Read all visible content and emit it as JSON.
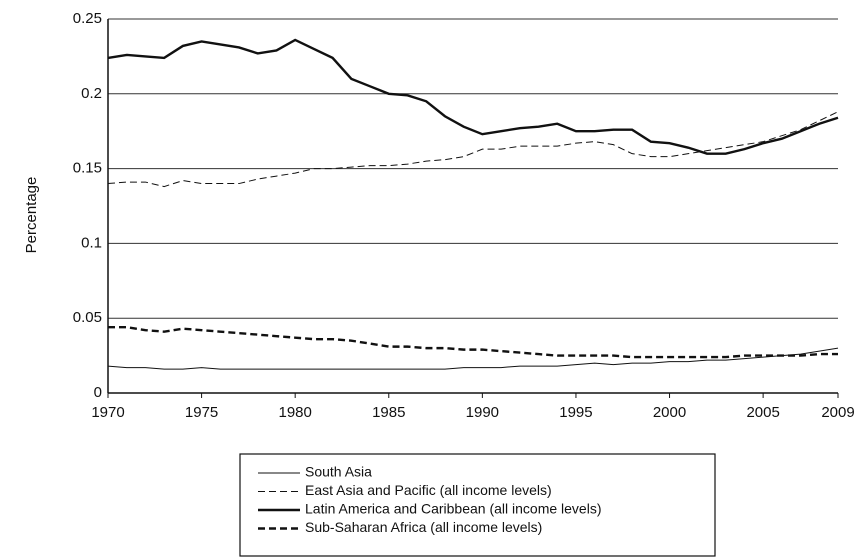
{
  "chart_data": {
    "type": "line",
    "y_label": "Percentage",
    "x": [
      1970,
      1971,
      1972,
      1973,
      1974,
      1975,
      1976,
      1977,
      1978,
      1979,
      1980,
      1981,
      1982,
      1983,
      1984,
      1985,
      1986,
      1987,
      1988,
      1989,
      1990,
      1991,
      1992,
      1993,
      1994,
      1995,
      1996,
      1997,
      1998,
      1999,
      2000,
      2001,
      2002,
      2003,
      2004,
      2005,
      2006,
      2007,
      2008,
      2009
    ],
    "series": [
      {
        "name": "South Asia",
        "color": "#111111",
        "dash": "solid",
        "width": 1,
        "values": [
          0.018,
          0.017,
          0.017,
          0.016,
          0.016,
          0.017,
          0.016,
          0.016,
          0.016,
          0.016,
          0.016,
          0.016,
          0.016,
          0.016,
          0.016,
          0.016,
          0.016,
          0.016,
          0.016,
          0.017,
          0.017,
          0.017,
          0.018,
          0.018,
          0.018,
          0.019,
          0.02,
          0.019,
          0.02,
          0.02,
          0.021,
          0.021,
          0.022,
          0.022,
          0.023,
          0.024,
          0.025,
          0.026,
          0.028,
          0.03
        ]
      },
      {
        "name": "East Asia and Pacific (all income levels)",
        "color": "#111111",
        "dash": "dashed",
        "width": 1,
        "values": [
          0.14,
          0.141,
          0.141,
          0.138,
          0.142,
          0.14,
          0.14,
          0.14,
          0.143,
          0.145,
          0.147,
          0.15,
          0.15,
          0.151,
          0.152,
          0.152,
          0.153,
          0.155,
          0.156,
          0.158,
          0.163,
          0.163,
          0.165,
          0.165,
          0.165,
          0.167,
          0.168,
          0.166,
          0.16,
          0.158,
          0.158,
          0.16,
          0.162,
          0.164,
          0.166,
          0.168,
          0.172,
          0.176,
          0.182,
          0.188
        ]
      },
      {
        "name": "Latin America and Caribbean (all income levels)",
        "color": "#111111",
        "dash": "solid",
        "width": 2.4,
        "values": [
          0.224,
          0.226,
          0.225,
          0.224,
          0.232,
          0.235,
          0.233,
          0.231,
          0.227,
          0.229,
          0.236,
          0.23,
          0.224,
          0.21,
          0.205,
          0.2,
          0.199,
          0.195,
          0.185,
          0.178,
          0.173,
          0.175,
          0.177,
          0.178,
          0.18,
          0.175,
          0.175,
          0.176,
          0.176,
          0.168,
          0.167,
          0.164,
          0.16,
          0.16,
          0.163,
          0.167,
          0.17,
          0.175,
          0.18,
          0.184
        ]
      },
      {
        "name": "Sub-Saharan Africa (all income levels)",
        "color": "#111111",
        "dash": "dashed",
        "width": 2.4,
        "values": [
          0.044,
          0.044,
          0.042,
          0.041,
          0.043,
          0.042,
          0.041,
          0.04,
          0.039,
          0.038,
          0.037,
          0.036,
          0.036,
          0.035,
          0.033,
          0.031,
          0.031,
          0.03,
          0.03,
          0.029,
          0.029,
          0.028,
          0.027,
          0.026,
          0.025,
          0.025,
          0.025,
          0.025,
          0.024,
          0.024,
          0.024,
          0.024,
          0.024,
          0.024,
          0.025,
          0.025,
          0.025,
          0.025,
          0.026,
          0.026
        ]
      }
    ],
    "xlim": [
      1970,
      2009
    ],
    "xticks": [
      1970,
      1975,
      1980,
      1985,
      1990,
      1995,
      2000,
      2005,
      2009
    ],
    "ylim": [
      0,
      0.25
    ],
    "yticks": [
      0,
      0.05,
      0.1,
      0.15,
      0.2,
      0.25
    ],
    "grid": true,
    "legend": "bottom"
  }
}
